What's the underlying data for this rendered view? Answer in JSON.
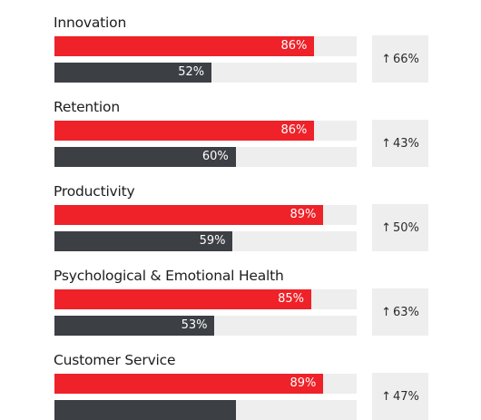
{
  "colors": {
    "series_1": "#ee2228",
    "series_2": "#3c3f44",
    "track": "#eeeeee",
    "change_box": "#eeeeee"
  },
  "chart_data": {
    "type": "bar",
    "orientation": "horizontal",
    "categories": [
      "Innovation",
      "Retention",
      "Productivity",
      "Psychological & Emotional Health",
      "Customer Service"
    ],
    "series": [
      {
        "values": [
          86,
          86,
          89,
          85,
          89
        ]
      },
      {
        "values": [
          52,
          60,
          59,
          53,
          60
        ]
      }
    ],
    "value_labels": [
      [
        "86%",
        "52%"
      ],
      [
        "86%",
        "60%"
      ],
      [
        "89%",
        "59%"
      ],
      [
        "85%",
        "53%"
      ],
      [
        "89%",
        ""
      ]
    ],
    "change_labels": [
      "66%",
      "43%",
      "50%",
      "63%",
      "47%"
    ],
    "change_icon": "arrow-up-icon",
    "xlim": [
      0,
      100
    ]
  }
}
